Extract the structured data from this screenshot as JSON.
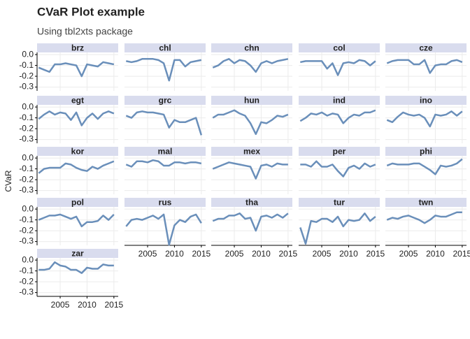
{
  "chart_data": {
    "type": "line",
    "title": "CVaR Plot example",
    "subtitle": "Using tbl2xts package",
    "y_label": "CVaR",
    "x": [
      2001,
      2002,
      2003,
      2004,
      2005,
      2006,
      2007,
      2008,
      2009,
      2010,
      2011,
      2012,
      2013,
      2014,
      2015
    ],
    "xlim": [
      2000.7,
      2015.8
    ],
    "ylim": [
      -0.335,
      0.02
    ],
    "xticks": [
      2005,
      2010,
      2015
    ],
    "yticks": [
      {
        "value": 0,
        "label": "0.0"
      },
      -0.1,
      -0.2,
      -0.3
    ],
    "grid": true,
    "strip_color": "#d9dcee",
    "line_color": "#6a8fba",
    "series": [
      {
        "name": "brz",
        "values": [
          -0.12,
          -0.14,
          -0.16,
          -0.09,
          -0.09,
          -0.08,
          -0.09,
          -0.1,
          -0.2,
          -0.09,
          -0.1,
          -0.11,
          -0.07,
          -0.08,
          -0.09
        ]
      },
      {
        "name": "chl",
        "values": [
          -0.06,
          -0.07,
          -0.06,
          -0.04,
          -0.04,
          -0.04,
          -0.05,
          -0.08,
          -0.24,
          -0.05,
          -0.05,
          -0.11,
          -0.07,
          -0.06,
          -0.05
        ]
      },
      {
        "name": "chn",
        "values": [
          -0.12,
          -0.1,
          -0.06,
          -0.04,
          -0.08,
          -0.05,
          -0.06,
          -0.1,
          -0.16,
          -0.08,
          -0.06,
          -0.08,
          -0.06,
          -0.05,
          -0.04
        ]
      },
      {
        "name": "col",
        "values": [
          -0.07,
          -0.06,
          -0.06,
          -0.06,
          -0.06,
          -0.13,
          -0.08,
          -0.19,
          -0.08,
          -0.07,
          -0.08,
          -0.05,
          -0.06,
          -0.1,
          -0.06
        ]
      },
      {
        "name": "cze",
        "values": [
          -0.08,
          -0.06,
          -0.05,
          -0.05,
          -0.05,
          -0.09,
          -0.09,
          -0.05,
          -0.17,
          -0.1,
          -0.09,
          -0.09,
          -0.06,
          -0.05,
          -0.07
        ]
      },
      {
        "name": "egt",
        "values": [
          -0.11,
          -0.07,
          -0.04,
          -0.07,
          -0.05,
          -0.06,
          -0.12,
          -0.05,
          -0.17,
          -0.1,
          -0.06,
          -0.11,
          -0.06,
          -0.04,
          -0.06
        ]
      },
      {
        "name": "grc",
        "values": [
          -0.08,
          -0.1,
          -0.05,
          -0.04,
          -0.05,
          -0.05,
          -0.06,
          -0.07,
          -0.19,
          -0.12,
          -0.14,
          -0.14,
          -0.12,
          -0.1,
          -0.26
        ]
      },
      {
        "name": "hun",
        "values": [
          -0.1,
          -0.07,
          -0.07,
          -0.05,
          -0.03,
          -0.06,
          -0.08,
          -0.15,
          -0.25,
          -0.14,
          -0.15,
          -0.12,
          -0.08,
          -0.09,
          -0.07
        ]
      },
      {
        "name": "ind",
        "values": [
          -0.13,
          -0.1,
          -0.06,
          -0.07,
          -0.05,
          -0.08,
          -0.06,
          -0.07,
          -0.15,
          -0.1,
          -0.07,
          -0.08,
          -0.05,
          -0.05,
          -0.03
        ]
      },
      {
        "name": "ino",
        "values": [
          -0.12,
          -0.14,
          -0.09,
          -0.05,
          -0.07,
          -0.08,
          -0.07,
          -0.1,
          -0.18,
          -0.07,
          -0.08,
          -0.07,
          -0.04,
          -0.08,
          -0.04
        ]
      },
      {
        "name": "kor",
        "values": [
          -0.14,
          -0.1,
          -0.09,
          -0.09,
          -0.09,
          -0.05,
          -0.06,
          -0.09,
          -0.11,
          -0.12,
          -0.08,
          -0.1,
          -0.07,
          -0.05,
          -0.03
        ]
      },
      {
        "name": "mal",
        "values": [
          -0.06,
          -0.08,
          -0.03,
          -0.03,
          -0.04,
          -0.02,
          -0.03,
          -0.07,
          -0.07,
          -0.04,
          -0.04,
          -0.05,
          -0.04,
          -0.04,
          -0.05
        ]
      },
      {
        "name": "mex",
        "values": [
          -0.1,
          -0.08,
          -0.06,
          -0.04,
          -0.05,
          -0.06,
          -0.07,
          -0.08,
          -0.19,
          -0.07,
          -0.06,
          -0.08,
          -0.05,
          -0.06,
          -0.06
        ]
      },
      {
        "name": "per",
        "values": [
          -0.06,
          -0.06,
          -0.08,
          -0.03,
          -0.08,
          -0.08,
          -0.06,
          -0.12,
          -0.17,
          -0.09,
          -0.07,
          -0.1,
          -0.05,
          -0.08,
          -0.06
        ]
      },
      {
        "name": "phi",
        "values": [
          -0.07,
          -0.05,
          -0.06,
          -0.06,
          -0.06,
          -0.05,
          -0.05,
          -0.08,
          -0.11,
          -0.15,
          -0.07,
          -0.08,
          -0.07,
          -0.05,
          -0.01
        ]
      },
      {
        "name": "pol",
        "values": [
          -0.1,
          -0.08,
          -0.06,
          -0.06,
          -0.05,
          -0.07,
          -0.09,
          -0.07,
          -0.16,
          -0.12,
          -0.12,
          -0.11,
          -0.06,
          -0.1,
          -0.05
        ]
      },
      {
        "name": "rus",
        "values": [
          -0.16,
          -0.1,
          -0.09,
          -0.1,
          -0.08,
          -0.06,
          -0.09,
          -0.05,
          -0.33,
          -0.15,
          -0.1,
          -0.12,
          -0.07,
          -0.05,
          -0.13
        ]
      },
      {
        "name": "tha",
        "values": [
          -0.11,
          -0.09,
          -0.09,
          -0.06,
          -0.06,
          -0.04,
          -0.09,
          -0.08,
          -0.2,
          -0.07,
          -0.06,
          -0.08,
          -0.05,
          -0.08,
          -0.04
        ]
      },
      {
        "name": "tur",
        "values": [
          -0.17,
          -0.32,
          -0.11,
          -0.12,
          -0.09,
          -0.09,
          -0.12,
          -0.07,
          -0.16,
          -0.1,
          -0.11,
          -0.1,
          -0.04,
          -0.11,
          -0.07
        ]
      },
      {
        "name": "twn",
        "values": [
          -0.1,
          -0.08,
          -0.09,
          -0.07,
          -0.06,
          -0.08,
          -0.1,
          -0.13,
          -0.1,
          -0.06,
          -0.07,
          -0.07,
          -0.05,
          -0.03,
          -0.03
        ]
      },
      {
        "name": "zar",
        "values": [
          -0.09,
          -0.09,
          -0.08,
          -0.02,
          -0.05,
          -0.06,
          -0.09,
          -0.09,
          -0.12,
          -0.07,
          -0.08,
          -0.08,
          -0.04,
          -0.05,
          -0.05
        ]
      }
    ]
  }
}
